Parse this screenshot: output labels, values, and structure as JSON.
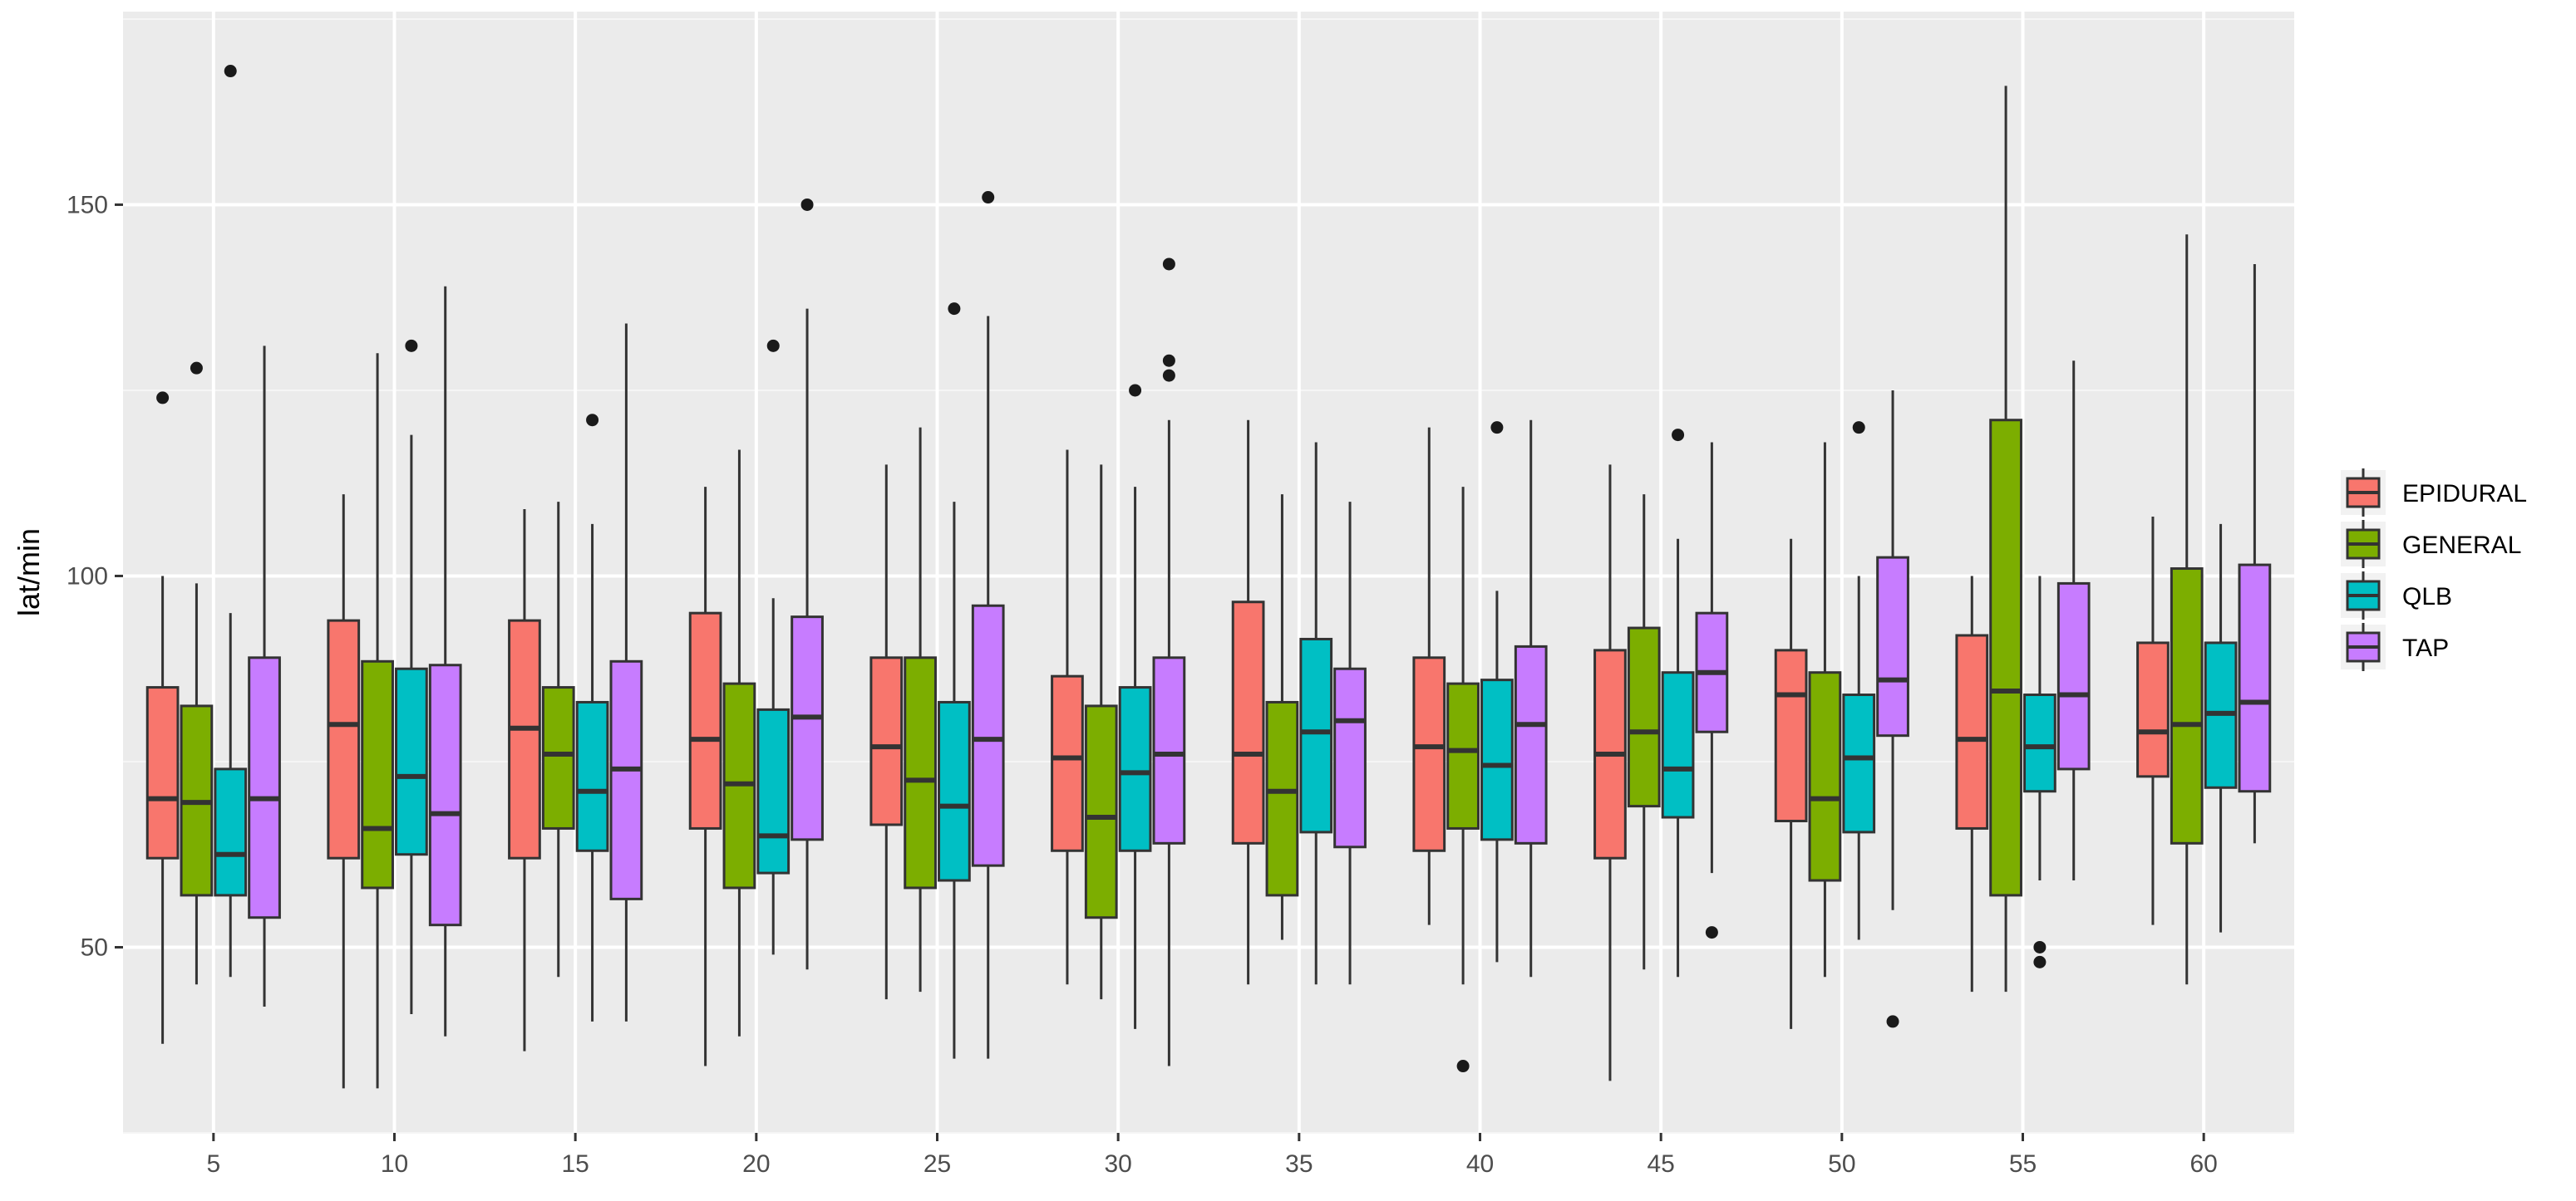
{
  "chart_data": {
    "type": "boxplot",
    "title": "",
    "xlabel": "",
    "ylabel": "lat/min",
    "ylim": [
      25,
      176
    ],
    "yticks": [
      50,
      100,
      150
    ],
    "categories": [
      "5",
      "10",
      "15",
      "20",
      "25",
      "30",
      "35",
      "40",
      "45",
      "50",
      "55",
      "60"
    ],
    "grid": true,
    "legend_position": "right",
    "series": [
      {
        "name": "EPIDURAL",
        "color": "#F8766D",
        "boxes": [
          {
            "min": 37,
            "q1": 62,
            "median": 70,
            "q3": 85,
            "max": 100,
            "outliers": [
              124
            ]
          },
          {
            "min": 31,
            "q1": 62,
            "median": 80,
            "q3": 94,
            "max": 111,
            "outliers": []
          },
          {
            "min": 36,
            "q1": 62,
            "median": 79.5,
            "q3": 94,
            "max": 109,
            "outliers": []
          },
          {
            "min": 34,
            "q1": 66,
            "median": 78,
            "q3": 95,
            "max": 112,
            "outliers": []
          },
          {
            "min": 43,
            "q1": 66.5,
            "median": 77,
            "q3": 89,
            "max": 115,
            "outliers": []
          },
          {
            "min": 45,
            "q1": 63,
            "median": 75.5,
            "q3": 86.5,
            "max": 117,
            "outliers": []
          },
          {
            "min": 45,
            "q1": 64,
            "median": 76,
            "q3": 96.5,
            "max": 121,
            "outliers": []
          },
          {
            "min": 53,
            "q1": 63,
            "median": 77,
            "q3": 89,
            "max": 120,
            "outliers": []
          },
          {
            "min": 32,
            "q1": 62,
            "median": 76,
            "q3": 90,
            "max": 115,
            "outliers": []
          },
          {
            "min": 39,
            "q1": 67,
            "median": 84,
            "q3": 90,
            "max": 105,
            "outliers": []
          },
          {
            "min": 44,
            "q1": 66,
            "median": 78,
            "q3": 92,
            "max": 100,
            "outliers": []
          },
          {
            "min": 53,
            "q1": 73,
            "median": 79,
            "q3": 91,
            "max": 108,
            "outliers": []
          }
        ]
      },
      {
        "name": "GENERAL",
        "color": "#7CAE00",
        "boxes": [
          {
            "min": 45,
            "q1": 57,
            "median": 69.5,
            "q3": 82.5,
            "max": 99,
            "outliers": [
              128
            ]
          },
          {
            "min": 31,
            "q1": 58,
            "median": 66,
            "q3": 88.5,
            "max": 130,
            "outliers": []
          },
          {
            "min": 46,
            "q1": 66,
            "median": 76,
            "q3": 85,
            "max": 110,
            "outliers": []
          },
          {
            "min": 38,
            "q1": 58,
            "median": 72,
            "q3": 85.5,
            "max": 117,
            "outliers": []
          },
          {
            "min": 44,
            "q1": 58,
            "median": 72.5,
            "q3": 89,
            "max": 120,
            "outliers": []
          },
          {
            "min": 43,
            "q1": 54,
            "median": 67.5,
            "q3": 82.5,
            "max": 115,
            "outliers": []
          },
          {
            "min": 51,
            "q1": 57,
            "median": 71,
            "q3": 83,
            "max": 111,
            "outliers": []
          },
          {
            "min": 45,
            "q1": 66,
            "median": 76.5,
            "q3": 85.5,
            "max": 112,
            "outliers": [
              34
            ]
          },
          {
            "min": 47,
            "q1": 69,
            "median": 79,
            "q3": 93,
            "max": 111,
            "outliers": []
          },
          {
            "min": 46,
            "q1": 59,
            "median": 70,
            "q3": 87,
            "max": 118,
            "outliers": []
          },
          {
            "min": 44,
            "q1": 57,
            "median": 84.5,
            "q3": 121,
            "max": 166,
            "outliers": []
          },
          {
            "min": 45,
            "q1": 64,
            "median": 80,
            "q3": 101,
            "max": 146,
            "outliers": []
          }
        ]
      },
      {
        "name": "QLB",
        "color": "#00BFC4",
        "boxes": [
          {
            "min": 46,
            "q1": 57,
            "median": 62.5,
            "q3": 74,
            "max": 95,
            "outliers": [
              168
            ]
          },
          {
            "min": 41,
            "q1": 62.5,
            "median": 73,
            "q3": 87.5,
            "max": 119,
            "outliers": [
              131
            ]
          },
          {
            "min": 40,
            "q1": 63,
            "median": 71,
            "q3": 83,
            "max": 107,
            "outliers": [
              121
            ]
          },
          {
            "min": 49,
            "q1": 60,
            "median": 65,
            "q3": 82,
            "max": 97,
            "outliers": [
              131
            ]
          },
          {
            "min": 35,
            "q1": 59,
            "median": 69,
            "q3": 83,
            "max": 110,
            "outliers": [
              136
            ]
          },
          {
            "min": 39,
            "q1": 63,
            "median": 73.5,
            "q3": 85,
            "max": 112,
            "outliers": [
              125
            ]
          },
          {
            "min": 45,
            "q1": 65.5,
            "median": 79,
            "q3": 91.5,
            "max": 118,
            "outliers": []
          },
          {
            "min": 48,
            "q1": 64.5,
            "median": 74.5,
            "q3": 86,
            "max": 98,
            "outliers": [
              120
            ]
          },
          {
            "min": 46,
            "q1": 67.5,
            "median": 74,
            "q3": 87,
            "max": 105,
            "outliers": [
              119
            ]
          },
          {
            "min": 51,
            "q1": 65.5,
            "median": 75.5,
            "q3": 84,
            "max": 100,
            "outliers": [
              120
            ]
          },
          {
            "min": 59,
            "q1": 71,
            "median": 77,
            "q3": 84,
            "max": 100,
            "outliers": [
              50,
              48
            ]
          },
          {
            "min": 52,
            "q1": 71.5,
            "median": 81.5,
            "q3": 91,
            "max": 107,
            "outliers": []
          }
        ]
      },
      {
        "name": "TAP",
        "color": "#C77CFF",
        "boxes": [
          {
            "min": 42,
            "q1": 54,
            "median": 70,
            "q3": 89,
            "max": 131,
            "outliers": []
          },
          {
            "min": 38,
            "q1": 53,
            "median": 68,
            "q3": 88,
            "max": 139,
            "outliers": []
          },
          {
            "min": 40,
            "q1": 56.5,
            "median": 74,
            "q3": 88.5,
            "max": 134,
            "outliers": []
          },
          {
            "min": 47,
            "q1": 64.5,
            "median": 81,
            "q3": 94.5,
            "max": 136,
            "outliers": [
              150
            ]
          },
          {
            "min": 35,
            "q1": 61,
            "median": 78,
            "q3": 96,
            "max": 135,
            "outliers": [
              151
            ]
          },
          {
            "min": 34,
            "q1": 64,
            "median": 76,
            "q3": 89,
            "max": 121,
            "outliers": [
              129,
              127,
              142
            ]
          },
          {
            "min": 45,
            "q1": 63.5,
            "median": 80.5,
            "q3": 87.5,
            "max": 110,
            "outliers": []
          },
          {
            "min": 46,
            "q1": 64,
            "median": 80,
            "q3": 90.5,
            "max": 121,
            "outliers": []
          },
          {
            "min": 60,
            "q1": 79,
            "median": 87,
            "q3": 95,
            "max": 118,
            "outliers": [
              52
            ]
          },
          {
            "min": 55,
            "q1": 78.5,
            "median": 86,
            "q3": 102.5,
            "max": 125,
            "outliers": [
              40
            ]
          },
          {
            "min": 59,
            "q1": 74,
            "median": 84,
            "q3": 99,
            "max": 129,
            "outliers": []
          },
          {
            "min": 64,
            "q1": 71,
            "median": 83,
            "q3": 101.5,
            "max": 142,
            "outliers": []
          }
        ]
      }
    ]
  }
}
